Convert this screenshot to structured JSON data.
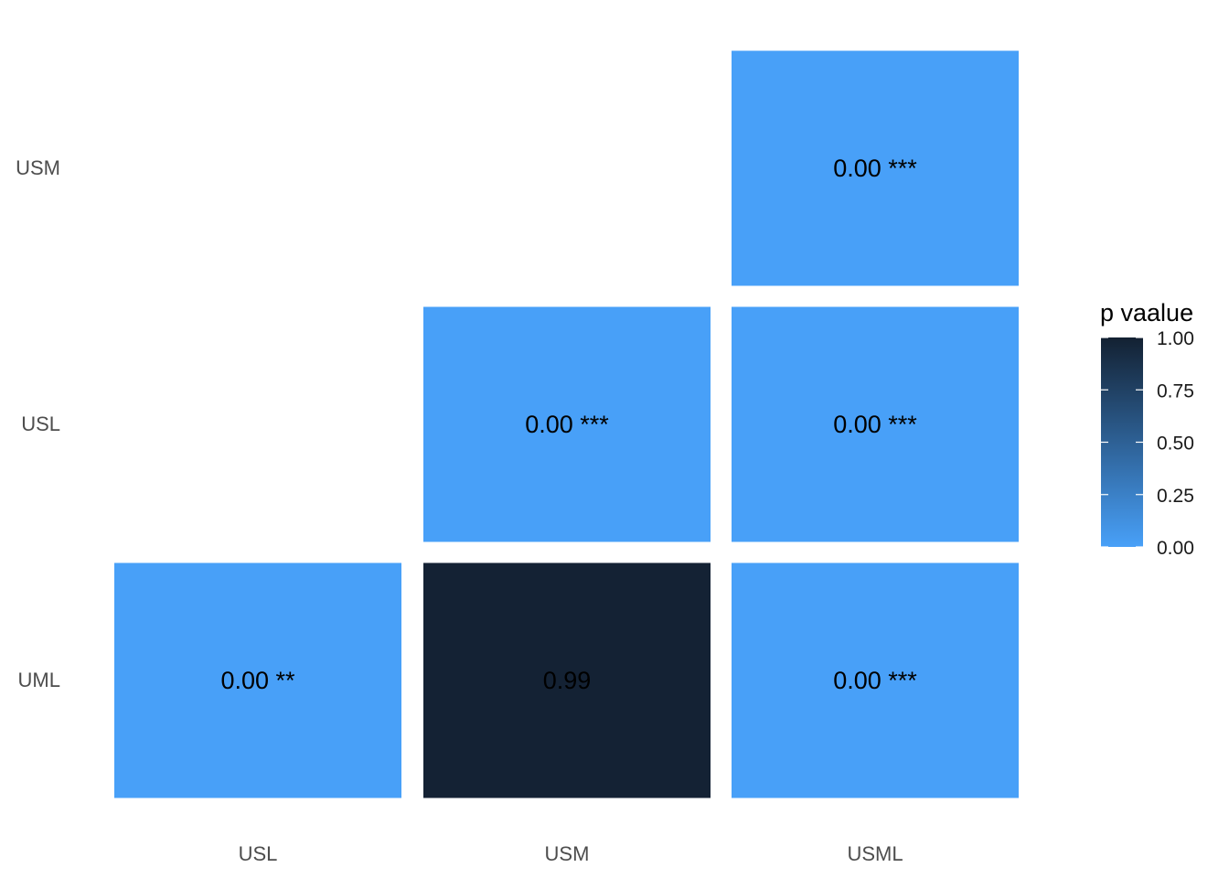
{
  "chart_data": {
    "type": "heatmap",
    "x_categories": [
      "USL",
      "USM",
      "USML"
    ],
    "y_categories": [
      "UML",
      "USL",
      "USM"
    ],
    "cells": [
      {
        "x": "USL",
        "y": "UML",
        "value": 0.0,
        "label": "0.00 **"
      },
      {
        "x": "USM",
        "y": "UML",
        "value": 0.99,
        "label": "0.99"
      },
      {
        "x": "USML",
        "y": "UML",
        "value": 0.0,
        "label": "0.00 ***"
      },
      {
        "x": "USM",
        "y": "USL",
        "value": 0.0,
        "label": "0.00 ***"
      },
      {
        "x": "USML",
        "y": "USL",
        "value": 0.0,
        "label": "0.00 ***"
      },
      {
        "x": "USML",
        "y": "USM",
        "value": 0.0,
        "label": "0.00 ***"
      }
    ],
    "legend": {
      "title": "p vaalue",
      "range": [
        0,
        1
      ],
      "ticks": [
        "0.00",
        "0.25",
        "0.50",
        "0.75",
        "1.00"
      ],
      "tick_values": [
        0,
        0.25,
        0.5,
        0.75,
        1
      ],
      "low_color": "#48a0f8",
      "high_color": "#132132",
      "placement": "right"
    },
    "grid": false
  }
}
